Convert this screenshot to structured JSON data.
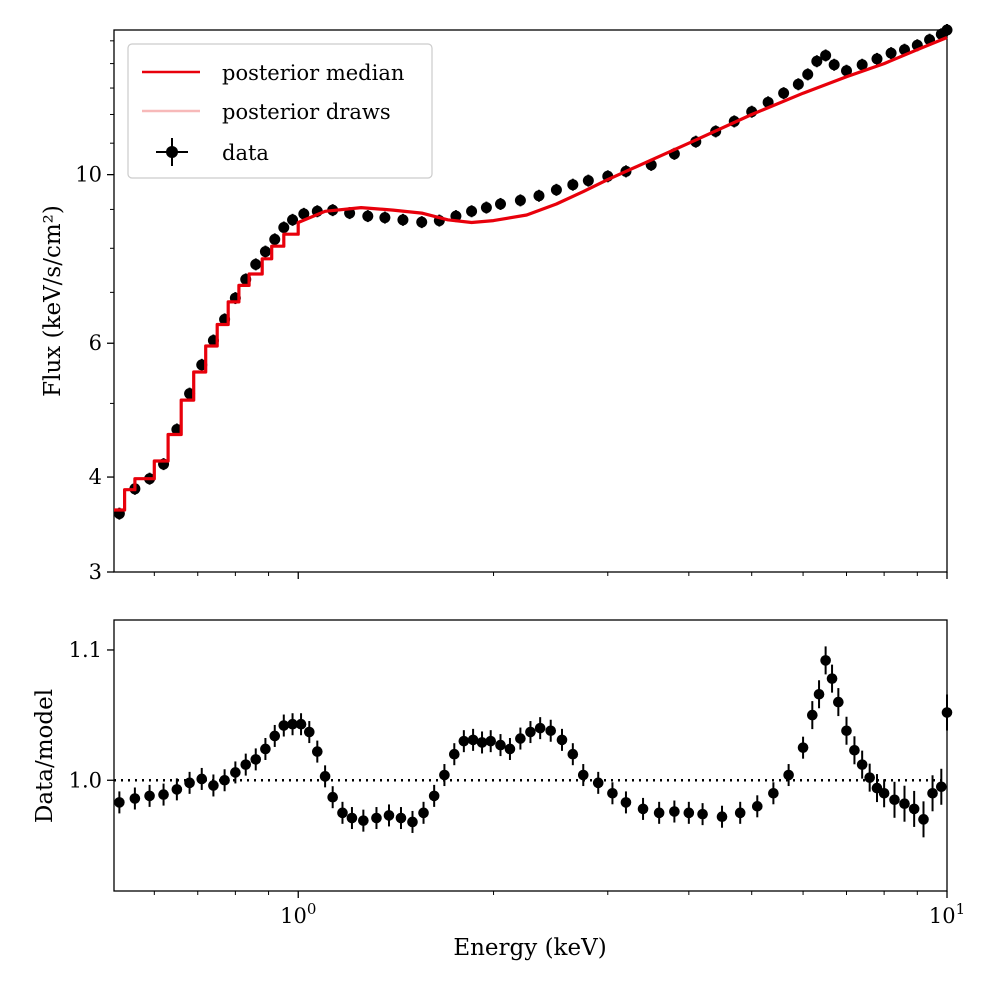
{
  "chart_data": [
    {
      "panel": "top",
      "type": "line",
      "xscale": "log",
      "yscale": "log",
      "xlim": [
        0.52,
        10
      ],
      "ylim": [
        3,
        15.5
      ],
      "xlabel": "",
      "ylabel": "Flux (keV/s/cm²)",
      "ytick_values": [
        3,
        4,
        6,
        10
      ],
      "ytick_labels": [
        "3",
        "4",
        "6",
        "10"
      ],
      "legend": {
        "placement": "upper-left",
        "entries": [
          {
            "label": "posterior median",
            "style": "line",
            "color": "#e8000b"
          },
          {
            "label": "posterior draws",
            "style": "line",
            "color": "#f7b9b9"
          },
          {
            "label": "data",
            "style": "errorbar",
            "color": "#000000"
          }
        ]
      },
      "series": [
        {
          "name": "posterior median",
          "kind": "step",
          "color": "#e8000b",
          "x": [
            0.52,
            0.54,
            0.56,
            0.6,
            0.63,
            0.66,
            0.69,
            0.72,
            0.75,
            0.78,
            0.81,
            0.84,
            0.88,
            0.91,
            0.95,
            1.0,
            1.1,
            1.25,
            1.4,
            1.55,
            1.7,
            1.85,
            2.0,
            2.25,
            2.5,
            2.75,
            3.0,
            3.5,
            4.0,
            5.0,
            6.0,
            7.0,
            8.0,
            9.0,
            10.0
          ],
          "y": [
            3.62,
            3.85,
            3.98,
            4.2,
            4.55,
            5.05,
            5.5,
            5.95,
            6.35,
            6.8,
            7.15,
            7.4,
            7.75,
            8.05,
            8.35,
            8.65,
            8.95,
            9.05,
            8.98,
            8.9,
            8.72,
            8.65,
            8.7,
            8.85,
            9.15,
            9.5,
            9.85,
            10.45,
            11.0,
            12.0,
            12.8,
            13.45,
            14.0,
            14.6,
            15.15
          ]
        },
        {
          "name": "data",
          "kind": "errorbar",
          "color": "#000000",
          "x": [
            0.53,
            0.56,
            0.59,
            0.62,
            0.65,
            0.68,
            0.71,
            0.74,
            0.77,
            0.8,
            0.83,
            0.86,
            0.89,
            0.92,
            0.95,
            0.98,
            1.02,
            1.07,
            1.13,
            1.2,
            1.28,
            1.36,
            1.45,
            1.55,
            1.65,
            1.75,
            1.85,
            1.95,
            2.05,
            2.2,
            2.35,
            2.5,
            2.65,
            2.8,
            3.0,
            3.2,
            3.5,
            3.8,
            4.1,
            4.4,
            4.7,
            5.0,
            5.3,
            5.6,
            5.9,
            6.1,
            6.3,
            6.5,
            6.7,
            7.0,
            7.4,
            7.8,
            8.2,
            8.6,
            9.0,
            9.4,
            9.8,
            10.0
          ],
          "y": [
            3.58,
            3.86,
            3.98,
            4.16,
            4.62,
            5.15,
            5.62,
            6.05,
            6.45,
            6.88,
            7.28,
            7.62,
            7.92,
            8.22,
            8.52,
            8.72,
            8.88,
            8.95,
            8.98,
            8.9,
            8.82,
            8.78,
            8.72,
            8.66,
            8.7,
            8.82,
            8.95,
            9.05,
            9.15,
            9.25,
            9.38,
            9.55,
            9.7,
            9.82,
            9.95,
            10.1,
            10.3,
            10.65,
            11.05,
            11.4,
            11.75,
            12.1,
            12.45,
            12.8,
            13.15,
            13.55,
            14.1,
            14.35,
            13.95,
            13.7,
            13.95,
            14.2,
            14.45,
            14.6,
            14.8,
            15.05,
            15.3,
            15.5
          ]
        }
      ]
    },
    {
      "panel": "bottom",
      "type": "scatter",
      "xscale": "log",
      "xlim": [
        0.52,
        10
      ],
      "ylim": [
        0.915,
        1.123
      ],
      "xlabel": "Energy (keV)",
      "ylabel": "Data/model",
      "ytick_values": [
        1.0,
        1.1
      ],
      "ytick_labels": [
        "1.0",
        "1.1"
      ],
      "xtick_values": [
        1,
        10
      ],
      "xtick_base": "10",
      "xtick_exponents": [
        "0",
        "1"
      ],
      "reference_line": {
        "y": 1.0,
        "style": "dotted",
        "color": "#000000"
      },
      "series": [
        {
          "name": "data/model",
          "kind": "errorbar",
          "color": "#000000",
          "x": [
            0.53,
            0.56,
            0.59,
            0.62,
            0.65,
            0.68,
            0.71,
            0.74,
            0.77,
            0.8,
            0.83,
            0.86,
            0.89,
            0.92,
            0.95,
            0.98,
            1.01,
            1.04,
            1.07,
            1.1,
            1.13,
            1.17,
            1.21,
            1.26,
            1.32,
            1.38,
            1.44,
            1.5,
            1.56,
            1.62,
            1.68,
            1.74,
            1.8,
            1.86,
            1.92,
            1.98,
            2.05,
            2.12,
            2.2,
            2.28,
            2.36,
            2.45,
            2.55,
            2.65,
            2.75,
            2.9,
            3.05,
            3.2,
            3.4,
            3.6,
            3.8,
            4.0,
            4.2,
            4.5,
            4.8,
            5.1,
            5.4,
            5.7,
            6.0,
            6.2,
            6.35,
            6.5,
            6.65,
            6.8,
            7.0,
            7.2,
            7.4,
            7.6,
            7.8,
            8.0,
            8.3,
            8.6,
            8.9,
            9.2,
            9.5,
            9.8,
            10.0
          ],
          "y": [
            0.983,
            0.986,
            0.988,
            0.989,
            0.993,
            0.998,
            1.001,
            0.996,
            1.0,
            1.006,
            1.012,
            1.016,
            1.024,
            1.034,
            1.042,
            1.043,
            1.043,
            1.037,
            1.022,
            1.003,
            0.987,
            0.975,
            0.971,
            0.969,
            0.971,
            0.973,
            0.971,
            0.968,
            0.975,
            0.988,
            1.004,
            1.02,
            1.03,
            1.031,
            1.029,
            1.03,
            1.027,
            1.024,
            1.032,
            1.037,
            1.04,
            1.038,
            1.031,
            1.02,
            1.004,
            0.998,
            0.99,
            0.983,
            0.978,
            0.975,
            0.976,
            0.975,
            0.974,
            0.972,
            0.975,
            0.98,
            0.99,
            1.004,
            1.025,
            1.05,
            1.066,
            1.092,
            1.078,
            1.06,
            1.038,
            1.023,
            1.012,
            1.002,
            0.994,
            0.99,
            0.985,
            0.982,
            0.978,
            0.97,
            0.99,
            0.995,
            1.052
          ]
        }
      ]
    }
  ]
}
